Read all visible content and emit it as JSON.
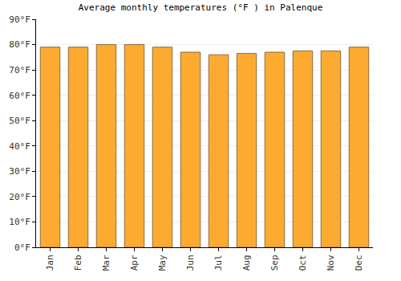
{
  "chart_data": {
    "type": "bar",
    "title": "Average monthly temperatures (°F ) in Palenque",
    "categories": [
      "Jan",
      "Feb",
      "Mar",
      "Apr",
      "May",
      "Jun",
      "Jul",
      "Aug",
      "Sep",
      "Oct",
      "Nov",
      "Dec"
    ],
    "values": [
      79,
      79,
      80,
      80,
      79,
      77,
      76,
      76.5,
      77,
      77.5,
      77.5,
      79
    ],
    "color": "#fdab30",
    "ylim": [
      0,
      90
    ],
    "yticks": [
      {
        "value": 0,
        "label": "0°F"
      },
      {
        "value": 10,
        "label": "10°F"
      },
      {
        "value": 20,
        "label": "20°F"
      },
      {
        "value": 30,
        "label": "30°F"
      },
      {
        "value": 40,
        "label": "40°F"
      },
      {
        "value": 50,
        "label": "50°F"
      },
      {
        "value": 60,
        "label": "60°F"
      },
      {
        "value": 70,
        "label": "70°F"
      },
      {
        "value": 80,
        "label": "80°F"
      },
      {
        "value": 90,
        "label": "90°F"
      }
    ],
    "grid": true
  }
}
